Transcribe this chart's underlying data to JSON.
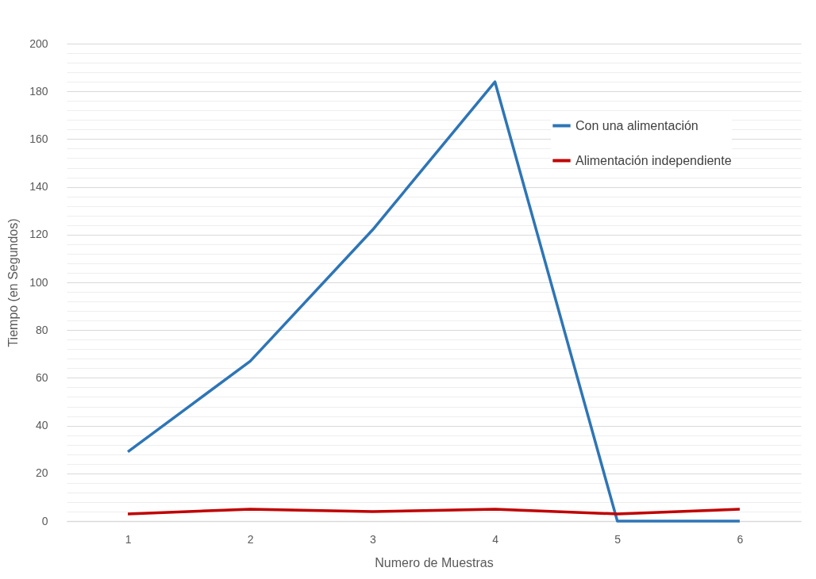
{
  "chart_data": {
    "type": "line",
    "xlabel": "Numero de Muestras",
    "ylabel": "Tiempo (en Segundos)",
    "categories": [
      "1",
      "2",
      "3",
      "4",
      "5",
      "6"
    ],
    "series": [
      {
        "name": "Con una alimentación",
        "color": "#2e75b6",
        "values": [
          29,
          67,
          122,
          184,
          0,
          0
        ]
      },
      {
        "name": "Alimentación independiente",
        "color": "#c00000",
        "values": [
          3,
          5,
          4,
          5,
          3,
          5
        ]
      }
    ],
    "ylim": [
      0,
      200
    ],
    "yticks": [
      0,
      {
        "value": 4,
        "label": null
      },
      {
        "value": 8,
        "label": null
      },
      {
        "value": 12,
        "label": null
      },
      {
        "value": 16,
        "label": null
      },
      20,
      {
        "value": 24,
        "label": null
      },
      {
        "value": 28,
        "label": null
      },
      {
        "value": 32,
        "label": null
      },
      {
        "value": 36,
        "label": null
      },
      40,
      {
        "value": 44,
        "label": null
      },
      {
        "value": 48,
        "label": null
      },
      {
        "value": 52,
        "label": null
      },
      {
        "value": 56,
        "label": null
      },
      60,
      {
        "value": 64,
        "label": null
      },
      {
        "value": 68,
        "label": null
      },
      {
        "value": 72,
        "label": null
      },
      {
        "value": 76,
        "label": null
      },
      80,
      {
        "value": 84,
        "label": null
      },
      {
        "value": 88,
        "label": null
      },
      {
        "value": 92,
        "label": null
      },
      {
        "value": 96,
        "label": null
      },
      100,
      {
        "value": 104,
        "label": null
      },
      {
        "value": 108,
        "label": null
      },
      {
        "value": 112,
        "label": null
      },
      {
        "value": 116,
        "label": null
      },
      120,
      {
        "value": 124,
        "label": null
      },
      {
        "value": 128,
        "label": null
      },
      {
        "value": 132,
        "label": null
      },
      {
        "value": 136,
        "label": null
      },
      140,
      {
        "value": 144,
        "label": null
      },
      {
        "value": 148,
        "label": null
      },
      {
        "value": 152,
        "label": null
      },
      {
        "value": 156,
        "label": null
      },
      160,
      {
        "value": 164,
        "label": null
      },
      {
        "value": 168,
        "label": null
      },
      {
        "value": 172,
        "label": null
      },
      {
        "value": 176,
        "label": null
      },
      180,
      {
        "value": 184,
        "label": null
      },
      {
        "value": 188,
        "label": null
      },
      {
        "value": 192,
        "label": null
      },
      {
        "value": 196,
        "label": null
      },
      200
    ],
    "grid": "y",
    "legend": "top right",
    "marker": "none",
    "line_style": "solid"
  }
}
